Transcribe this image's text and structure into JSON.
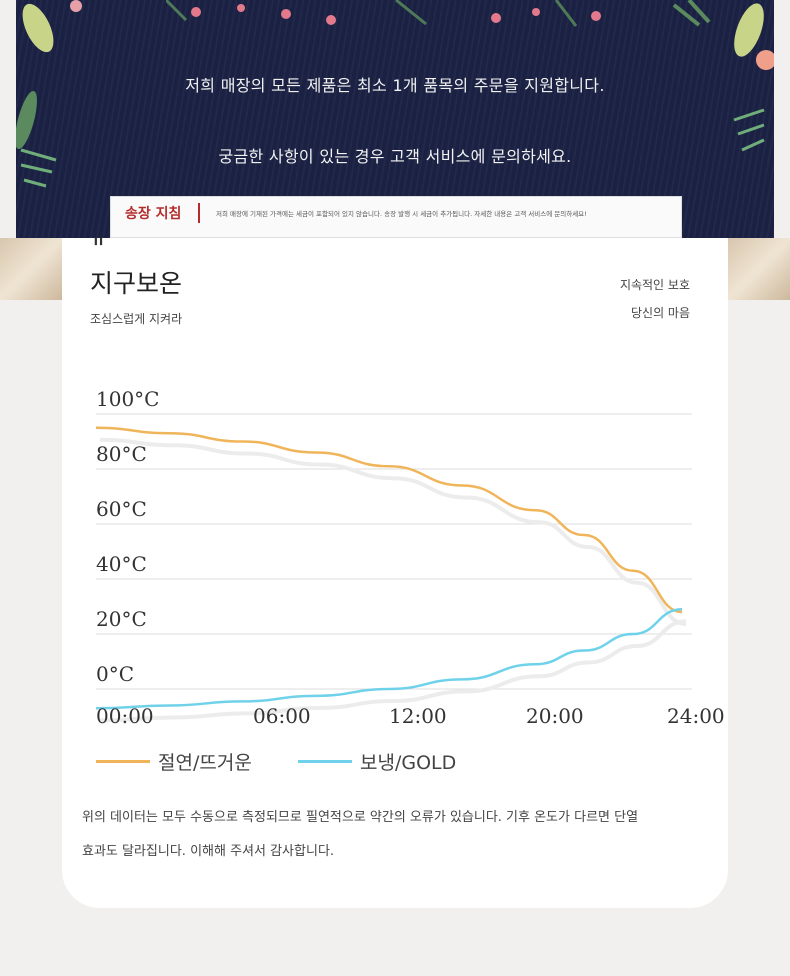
{
  "banner": {
    "line1": "저희 매장의 모든 제품은 최소 1개 품목의 주문을 지원합니다.",
    "line2": "궁금한 사항이 있는 경우 고객 서비스에 문의하세요.",
    "notice_badge": "송장 지침",
    "notice_text": "저희 매장에 기재된 가격에는 세금이 포함되어 있지 않습니다. 송장 발행 시 세금이 추가됩니다. 자세한 내용은 고객 서비스에 문의하세요!"
  },
  "card": {
    "quote_mark": "\"",
    "title": "지구보온",
    "subtitle": "조심스럽게 지켜라",
    "tag1": "지속적인 보호",
    "tag2": "당신의 마음"
  },
  "chart_data": {
    "type": "line",
    "x_tick_labels": [
      "00:00",
      "06:00",
      "12:00",
      "20:00",
      "24:00"
    ],
    "y_tick_labels": [
      "100°C",
      "80°C",
      "60°C",
      "40°C",
      "20°C",
      "0°C"
    ],
    "y_tick_values": [
      100,
      80,
      60,
      40,
      20,
      0
    ],
    "ylim": [
      0,
      100
    ],
    "x": [
      0,
      3,
      6,
      9,
      12,
      15,
      18,
      20,
      22,
      24
    ],
    "series": [
      {
        "name": "절연/뜨거운",
        "color": "#f0b55a",
        "values": [
          95,
          93,
          90,
          86,
          81,
          74,
          65,
          56,
          43,
          28
        ]
      },
      {
        "name": "보냉/GOLD",
        "color": "#6fd2ea",
        "values": [
          -7,
          -6,
          -4.5,
          -2.5,
          0,
          3.5,
          9,
          14,
          20,
          29
        ]
      }
    ],
    "grid": true
  },
  "footnote": {
    "line1": "위의 데이터는 모두 수동으로 측정되므로 필연적으로 약간의 오류가 있습니다. 기후 온도가 다르면 단열",
    "line2": "효과도 달라집니다. 이해해 주셔서 감사합니다."
  }
}
